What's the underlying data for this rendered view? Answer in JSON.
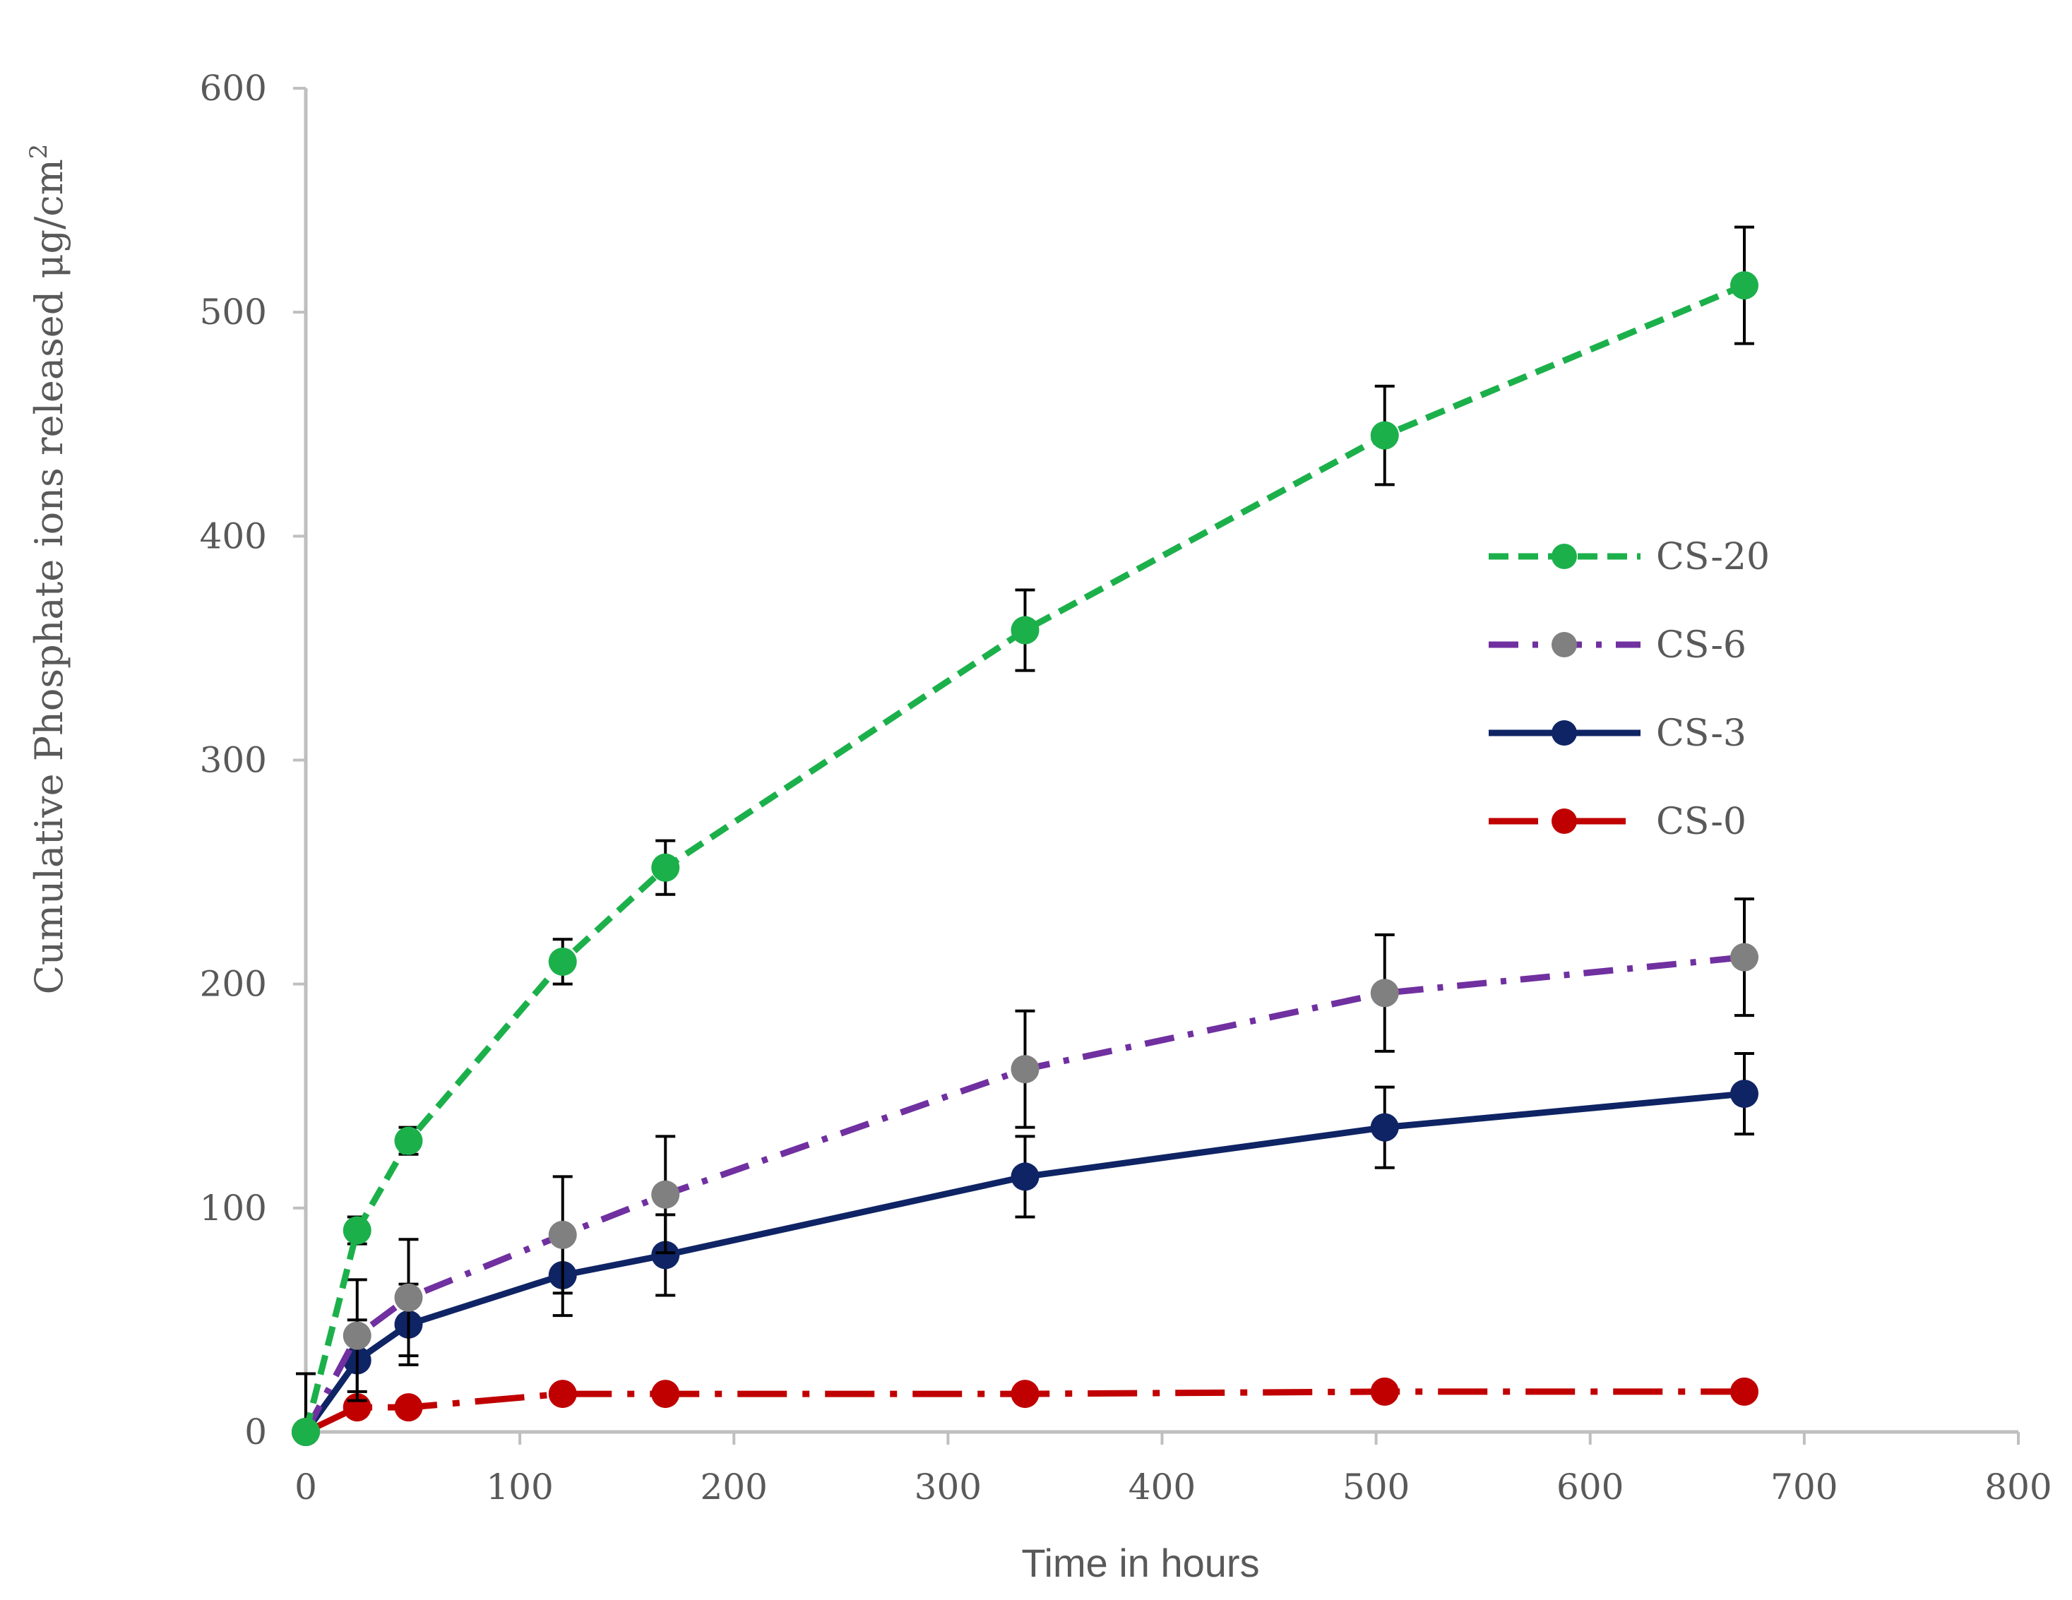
{
  "chart_data": {
    "type": "line",
    "title": "",
    "xlabel": "Time in hours",
    "ylabel": "Cumulative Phosphate ions released μg/cm",
    "ylabel_superscript": "2",
    "xlim": [
      0,
      800
    ],
    "ylim": [
      0,
      600
    ],
    "x_ticks": [
      0,
      100,
      200,
      300,
      400,
      500,
      600,
      700,
      800
    ],
    "y_ticks": [
      0,
      100,
      200,
      300,
      400,
      500,
      600
    ],
    "grid": false,
    "legend_position": "right",
    "x": [
      0,
      24,
      48,
      120,
      168,
      336,
      504,
      672
    ],
    "series": [
      {
        "name": "CS-20",
        "line_color": "#1CB04B",
        "marker_color": "#1CB04B",
        "dash": "dashed",
        "values": [
          0,
          90,
          130,
          210,
          252,
          358,
          445,
          512
        ],
        "errors": [
          0,
          6,
          6,
          10,
          12,
          18,
          22,
          26
        ]
      },
      {
        "name": "CS-6",
        "line_color": "#7030A0",
        "marker_color": "#808080",
        "dash": "dash-dot",
        "values": [
          0,
          43,
          60,
          88,
          106,
          162,
          196,
          212
        ],
        "errors": [
          26,
          25,
          26,
          26,
          26,
          26,
          26,
          26
        ]
      },
      {
        "name": "CS-3",
        "line_color": "#0F2464",
        "marker_color": "#0F2464",
        "dash": "solid",
        "values": [
          0,
          32,
          48,
          70,
          79,
          114,
          136,
          151
        ],
        "errors": [
          0,
          18,
          18,
          18,
          18,
          18,
          18,
          18
        ]
      },
      {
        "name": "CS-0",
        "line_color": "#C00000",
        "marker_color": "#C00000",
        "dash": "long-dash-dot",
        "values": [
          0,
          11,
          11,
          17,
          17,
          17,
          18,
          18
        ],
        "errors": [
          0,
          0,
          0,
          0,
          0,
          0,
          0,
          0
        ]
      }
    ]
  }
}
